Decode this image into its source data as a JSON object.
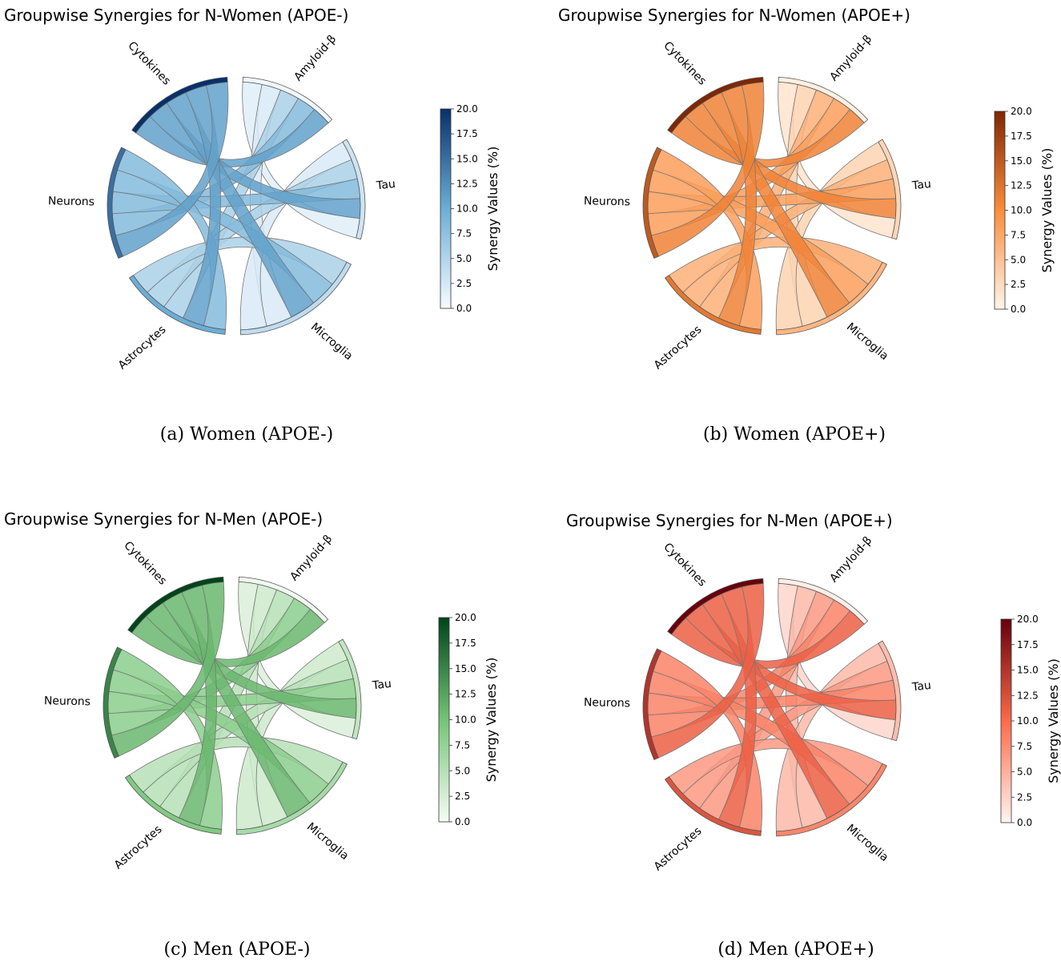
{
  "chart_data": [
    {
      "type": "chord",
      "title": "Groupwise Synergies for N-Women (APOE-)",
      "caption": "(a) Women (APOE-)",
      "groups": [
        "Amyloid-β",
        "Tau",
        "Microglia",
        "Astrocytes",
        "Neurons",
        "Cytokines"
      ],
      "group_values": [
        0.5,
        3,
        4,
        10,
        15,
        20
      ],
      "colorbar": {
        "label": "Synergy Values (%)",
        "range": [
          0,
          20
        ],
        "ticks": [
          "0.0",
          "2.5",
          "5.0",
          "7.5",
          "10.0",
          "12.5",
          "15.0",
          "17.5",
          "20.0"
        ]
      },
      "colors": {
        "low": "#f7fbff",
        "mid": "#6baed6",
        "high": "#08306b"
      }
    },
    {
      "type": "chord",
      "title": "Groupwise Synergies for N-Women (APOE+)",
      "caption": "(b) Women (APOE+)",
      "groups": [
        "Amyloid-β",
        "Tau",
        "Microglia",
        "Astrocytes",
        "Neurons",
        "Cytokines"
      ],
      "group_values": [
        0.5,
        3,
        6,
        12,
        15,
        20
      ],
      "colorbar": {
        "label": "Synergy Values (%)",
        "range": [
          0,
          20
        ],
        "ticks": [
          "0.0",
          "2.5",
          "5.0",
          "7.5",
          "10.0",
          "12.5",
          "15.0",
          "17.5",
          "20.0"
        ]
      },
      "colors": {
        "low": "#fff5eb",
        "mid": "#fd8d3c",
        "high": "#7f2704"
      }
    },
    {
      "type": "chord",
      "title": "Groupwise Synergies for N-Men (APOE-)",
      "caption": "(c) Men (APOE-)",
      "groups": [
        "Amyloid-β",
        "Tau",
        "Microglia",
        "Astrocytes",
        "Neurons",
        "Cytokines"
      ],
      "group_values": [
        0.5,
        4,
        6,
        9,
        15,
        20
      ],
      "colorbar": {
        "label": "Synergy Values (%)",
        "range": [
          0,
          20
        ],
        "ticks": [
          "0.0",
          "2.5",
          "5.0",
          "7.5",
          "10.0",
          "12.5",
          "15.0",
          "17.5",
          "20.0"
        ]
      },
      "colors": {
        "low": "#f7fcf5",
        "mid": "#74c476",
        "high": "#00441b"
      }
    },
    {
      "type": "chord",
      "title": "Groupwise Synergies for N-Men (APOE+)",
      "caption": "(d) Men (APOE+)",
      "groups": [
        "Amyloid-β",
        "Tau",
        "Microglia",
        "Astrocytes",
        "Neurons",
        "Cytokines"
      ],
      "group_values": [
        0.5,
        4,
        8,
        12,
        15,
        20
      ],
      "colorbar": {
        "label": "Synergy Values (%)",
        "range": [
          0,
          20
        ],
        "ticks": [
          "0.0",
          "2.5",
          "5.0",
          "7.5",
          "10.0",
          "12.5",
          "15.0",
          "17.5",
          "20.0"
        ]
      },
      "colors": {
        "low": "#fff5f0",
        "mid": "#fb6a4a",
        "high": "#67000d"
      }
    }
  ]
}
